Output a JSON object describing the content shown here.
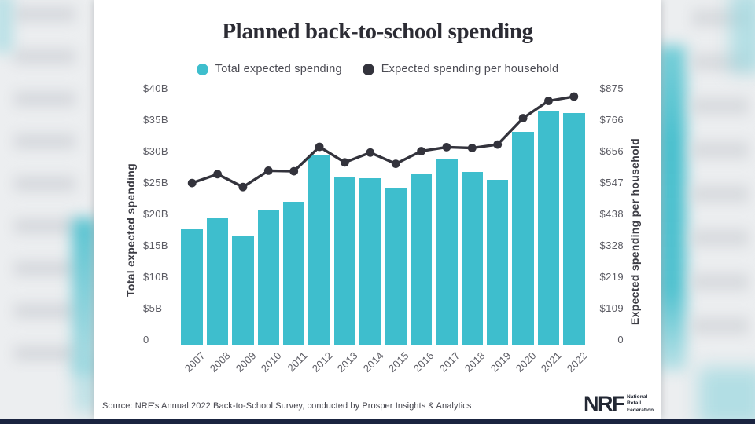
{
  "title": "Planned back-to-school spending",
  "legend": [
    {
      "label": "Total expected spending",
      "color": "#3ebecd"
    },
    {
      "label": "Expected spending per household",
      "color": "#33333c"
    }
  ],
  "chart_data": {
    "type": "bar",
    "categories": [
      "2007",
      "2008",
      "2009",
      "2010",
      "2011",
      "2012",
      "2013",
      "2014",
      "2015",
      "2016",
      "2017",
      "2018",
      "2019",
      "2020",
      "2021",
      "2022"
    ],
    "series": [
      {
        "name": "Total expected spending",
        "type": "bar",
        "axis": "left",
        "unit": "$B",
        "color": "#3ebecd",
        "values": [
          18.4,
          20.1,
          17.4,
          21.4,
          22.8,
          30.3,
          26.7,
          26.5,
          24.9,
          27.3,
          29.5,
          27.5,
          26.2,
          33.9,
          37.1,
          36.9
        ]
      },
      {
        "name": "Expected spending per household",
        "type": "line",
        "axis": "right",
        "unit": "$",
        "color": "#33333c",
        "values": [
          563,
          594,
          549,
          606,
          604,
          689,
          635,
          669,
          630,
          674,
          688,
          685,
          697,
          789,
          849,
          864
        ]
      }
    ],
    "title": "Planned back-to-school spending",
    "left_axis": {
      "label": "Total expected spending",
      "max": 40,
      "min": 0,
      "ticks": [
        "$40B",
        "$35B",
        "$30B",
        "$25B",
        "$20B",
        "$15B",
        "$10B",
        "$5B",
        "0"
      ]
    },
    "right_axis": {
      "label": "Expected spending per household",
      "max": 875,
      "min": 0,
      "ticks": [
        "$875",
        "$766",
        "$656",
        "$547",
        "$438",
        "$328",
        "$219",
        "$109",
        "0"
      ]
    },
    "grid": false,
    "legend_position": "top"
  },
  "footer": {
    "source": "Source: NRF's Annual 2022 Back-to-School Survey, conducted by Prosper Insights & Analytics",
    "logo_text": "NRF",
    "logo_lines": [
      "National",
      "Retail",
      "Federation"
    ]
  },
  "colors": {
    "bar": "#3ebecd",
    "line": "#33333c",
    "title_text": "#2c2c34",
    "tick_text": "#5b5b63",
    "bottom_bar": "#1a2440",
    "card_background": "#ffffff"
  }
}
